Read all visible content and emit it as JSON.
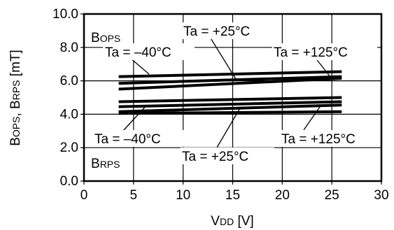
{
  "chart_data": {
    "type": "line",
    "xlabel": {
      "main": "V",
      "sub": "DD",
      "unit": " [V]"
    },
    "ylabel": {
      "a_main": "B",
      "a_sub": "OPS",
      "sep": ", ",
      "b_main": "B",
      "b_sub": "RPS",
      "unit": " [mT]"
    },
    "xlim": [
      0,
      30
    ],
    "ylim": [
      0,
      10
    ],
    "xticks": [
      "0",
      "5",
      "10",
      "15",
      "20",
      "25",
      "30"
    ],
    "yticks": [
      "0.0",
      "2.0",
      "4.0",
      "6.0",
      "8.0",
      "10.0"
    ],
    "grid": true,
    "series": [
      {
        "x": [
          3.5,
          26
        ],
        "y": [
          6.25,
          6.55
        ]
      },
      {
        "x": [
          3.5,
          26
        ],
        "y": [
          5.85,
          6.25
        ]
      },
      {
        "x": [
          3.5,
          26
        ],
        "y": [
          5.5,
          6.15
        ]
      },
      {
        "x": [
          3.5,
          26
        ],
        "y": [
          4.75,
          5.0
        ]
      },
      {
        "x": [
          3.5,
          26
        ],
        "y": [
          4.45,
          4.75
        ]
      },
      {
        "x": [
          3.5,
          26
        ],
        "y": [
          4.15,
          4.55
        ]
      },
      {
        "x": [
          3.5,
          26
        ],
        "y": [
          4.05,
          4.15
        ]
      }
    ],
    "annotations": {
      "bops_label": {
        "main": "B",
        "sub": "OPS"
      },
      "brps_label": {
        "main": "B",
        "sub": "RPS"
      },
      "top_m40": "Ta = –40°C",
      "top_p25": "Ta = +25°C",
      "top_p125": "Ta = +125°C",
      "bot_m40": "Ta = –40°C",
      "bot_p25": "Ta = +25°C",
      "bot_p125": "Ta = +125°C"
    },
    "colors": {
      "line": "#000000",
      "grid": "#000000",
      "background": "#ffffff"
    }
  }
}
